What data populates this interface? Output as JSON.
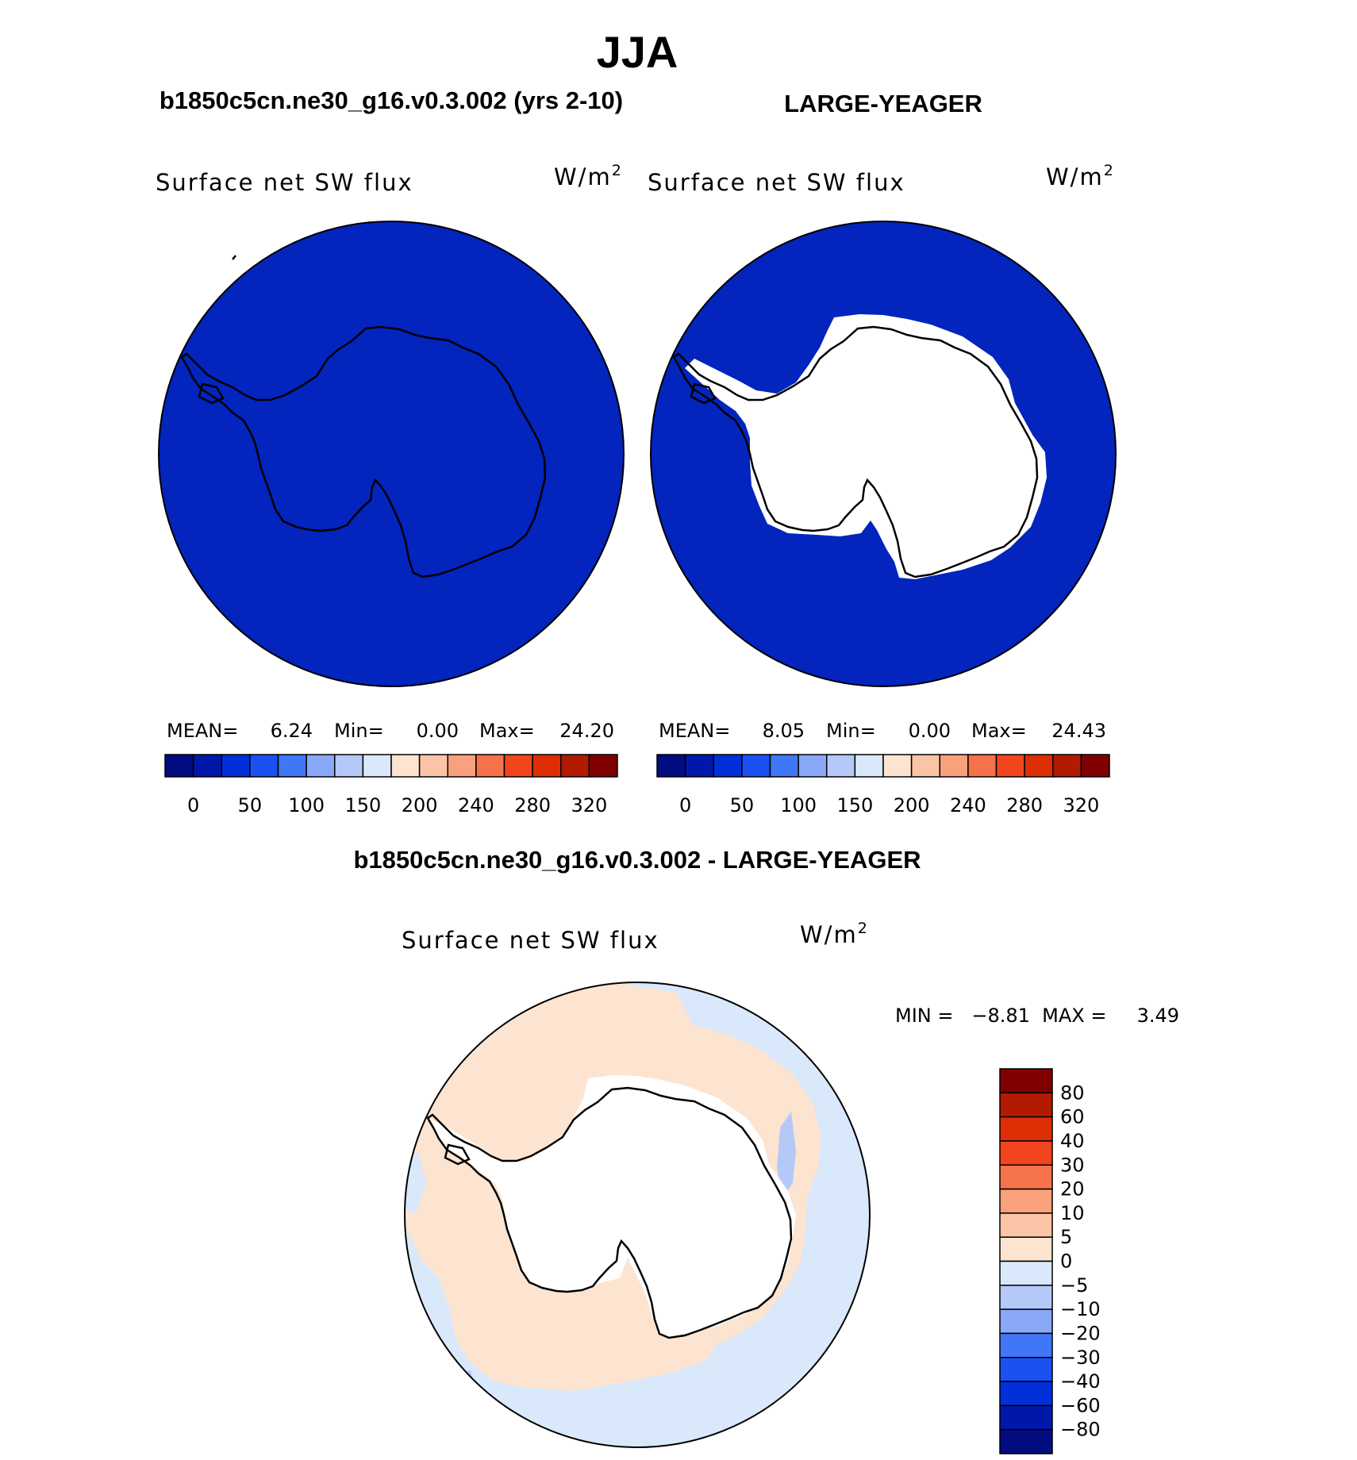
{
  "page_title": "JJA",
  "colors": {
    "seq_palette": [
      "#000c80",
      "#0018aa",
      "#0230d8",
      "#1b50f3",
      "#3f77f7",
      "#8aa8f8",
      "#b4c9f8",
      "#d9e8fb",
      "#fde4d0",
      "#fcc4a7",
      "#f9a07c",
      "#f6724a",
      "#f2451d",
      "#dd2e06",
      "#b21b02",
      "#800000"
    ],
    "diff_palette": [
      "#000c80",
      "#0018aa",
      "#0230d8",
      "#1b50f3",
      "#3f77f7",
      "#8aa8f8",
      "#b4c9f8",
      "#d9e8fb",
      "#fde4d0",
      "#fcc4a7",
      "#f9a07c",
      "#f6724a",
      "#f2451d",
      "#dd2e06",
      "#b21b02",
      "#800000"
    ],
    "ocean_fill": "#0324bd",
    "land_fill": "#ffffff",
    "coast": "#000000"
  },
  "panels": {
    "left": {
      "title": "b1850c5cn.ne30_g16.v0.3.002 (yrs 2-10)",
      "variable": "Surface net SW flux",
      "units_base": "W/m",
      "units_exp": "2",
      "stats": {
        "mean_label": "MEAN=",
        "mean": "6.24",
        "min_label": "Min=",
        "min": "0.00",
        "max_label": "Max=",
        "max": "24.20"
      },
      "colorbar_ticks": [
        "0",
        "50",
        "100",
        "150",
        "200",
        "240",
        "280",
        "320"
      ]
    },
    "right": {
      "title": "LARGE-YEAGER",
      "variable": "Surface net SW flux",
      "units_base": "W/m",
      "units_exp": "2",
      "stats": {
        "mean_label": "MEAN=",
        "mean": "8.05",
        "min_label": "Min=",
        "min": "0.00",
        "max_label": "Max=",
        "max": "24.43"
      },
      "colorbar_ticks": [
        "0",
        "50",
        "100",
        "150",
        "200",
        "240",
        "280",
        "320"
      ]
    },
    "diff": {
      "title": "b1850c5cn.ne30_g16.v0.3.002 - LARGE-YEAGER",
      "variable": "Surface net SW flux",
      "units_base": "W/m",
      "units_exp": "2",
      "minmax_text": "MIN =   −8.81  MAX =     3.49",
      "colorbar_ticks": [
        "80",
        "60",
        "40",
        "30",
        "20",
        "10",
        "5",
        "0",
        "−5",
        "−10",
        "−20",
        "−30",
        "−40",
        "−60",
        "−80"
      ]
    }
  }
}
